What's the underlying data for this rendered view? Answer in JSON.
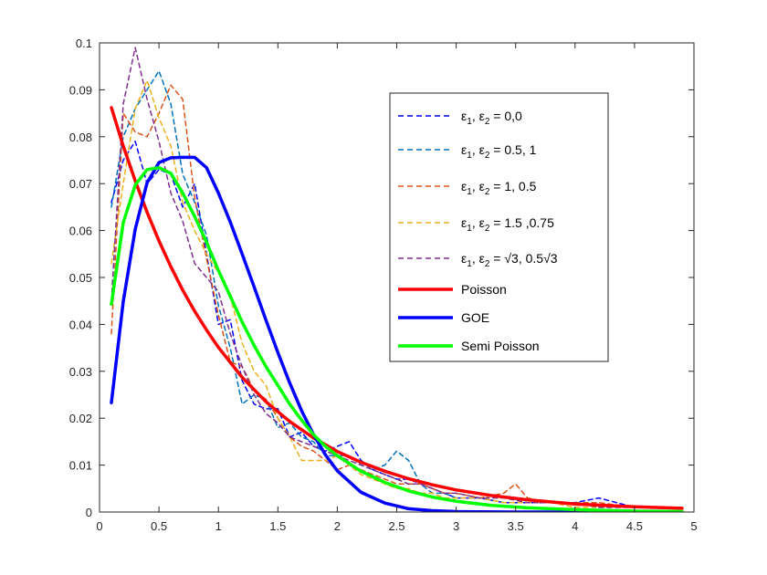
{
  "chart_data": {
    "type": "line",
    "title": "",
    "xlabel": "",
    "ylabel": "",
    "xlim": [
      0,
      5
    ],
    "ylim": [
      0,
      0.1
    ],
    "x_ticks": [
      0,
      0.5,
      1,
      1.5,
      2,
      2.5,
      3,
      3.5,
      4,
      4.5,
      5
    ],
    "y_ticks": [
      0,
      0.01,
      0.02,
      0.03,
      0.04,
      0.05,
      0.06,
      0.07,
      0.08,
      0.09,
      0.1
    ],
    "x_tick_labels": [
      "0",
      "0.5",
      "1",
      "1.5",
      "2",
      "2.5",
      "3",
      "3.5",
      "4",
      "4.5",
      "5"
    ],
    "y_tick_labels": [
      "0",
      "0.01",
      "0.02",
      "0.03",
      "0.04",
      "0.05",
      "0.06",
      "0.07",
      "0.08",
      "0.09",
      "0.1"
    ],
    "grid": false,
    "legend_position": "top-right",
    "series": [
      {
        "name": "ε1, ε2 = 0,0",
        "label_main": "ε",
        "label_rest": "= 0,0",
        "style": "dashed",
        "width": "thin",
        "color": "#0000ff",
        "x": [
          0.1,
          0.2,
          0.3,
          0.4,
          0.5,
          0.6,
          0.7,
          0.8,
          0.9,
          1.0,
          1.1,
          1.2,
          1.3,
          1.4,
          1.5,
          1.6,
          1.7,
          1.8,
          1.9,
          2.0,
          2.1,
          2.2,
          2.3,
          2.4,
          2.5,
          2.6,
          2.7,
          2.8,
          2.9,
          3.0,
          3.2,
          3.4,
          3.6,
          3.8,
          4.0,
          4.2,
          4.5,
          4.9
        ],
        "y": [
          0.066,
          0.075,
          0.079,
          0.07,
          0.073,
          0.072,
          0.065,
          0.07,
          0.055,
          0.04,
          0.041,
          0.028,
          0.023,
          0.022,
          0.022,
          0.016,
          0.017,
          0.014,
          0.013,
          0.014,
          0.015,
          0.011,
          0.009,
          0.008,
          0.007,
          0.007,
          0.006,
          0.005,
          0.004,
          0.003,
          0.003,
          0.002,
          0.002,
          0.002,
          0.002,
          0.003,
          0.001,
          0.001
        ]
      },
      {
        "name": "ε1, ε2 = 0.5, 1",
        "label_main": "ε",
        "label_rest": "= 0.5, 1",
        "style": "dashed",
        "width": "thin",
        "color": "#0072bd",
        "x": [
          0.1,
          0.2,
          0.3,
          0.4,
          0.5,
          0.6,
          0.7,
          0.8,
          0.9,
          1.0,
          1.1,
          1.2,
          1.3,
          1.4,
          1.5,
          1.6,
          1.7,
          1.8,
          1.9,
          2.0,
          2.1,
          2.2,
          2.3,
          2.4,
          2.5,
          2.6,
          2.7,
          2.8,
          2.9,
          3.0,
          3.2,
          3.4,
          3.6,
          3.8,
          4.0,
          4.2,
          4.5,
          4.9
        ],
        "y": [
          0.065,
          0.08,
          0.086,
          0.09,
          0.094,
          0.087,
          0.072,
          0.066,
          0.059,
          0.044,
          0.035,
          0.023,
          0.025,
          0.024,
          0.018,
          0.019,
          0.016,
          0.015,
          0.012,
          0.012,
          0.012,
          0.01,
          0.009,
          0.01,
          0.013,
          0.011,
          0.006,
          0.004,
          0.004,
          0.003,
          0.003,
          0.002,
          0.002,
          0.002,
          0.002,
          0.001,
          0.001,
          0.001
        ]
      },
      {
        "name": "ε1, ε2 = 1, 0.5",
        "label_main": "ε",
        "label_rest": "= 1, 0.5",
        "style": "dashed",
        "width": "thin",
        "color": "#d95319",
        "x": [
          0.1,
          0.2,
          0.3,
          0.4,
          0.5,
          0.6,
          0.7,
          0.8,
          0.9,
          1.0,
          1.1,
          1.2,
          1.3,
          1.4,
          1.5,
          1.6,
          1.7,
          1.8,
          1.9,
          2.0,
          2.1,
          2.2,
          2.3,
          2.4,
          2.5,
          2.6,
          2.7,
          2.8,
          2.9,
          3.0,
          3.2,
          3.4,
          3.5,
          3.6,
          3.8,
          4.0,
          4.2,
          4.5,
          4.9
        ],
        "y": [
          0.038,
          0.085,
          0.081,
          0.08,
          0.085,
          0.091,
          0.088,
          0.067,
          0.054,
          0.042,
          0.032,
          0.031,
          0.026,
          0.024,
          0.02,
          0.016,
          0.014,
          0.013,
          0.011,
          0.009,
          0.01,
          0.009,
          0.008,
          0.007,
          0.006,
          0.006,
          0.006,
          0.005,
          0.004,
          0.004,
          0.003,
          0.004,
          0.006,
          0.003,
          0.002,
          0.002,
          0.002,
          0.001,
          0.001
        ]
      },
      {
        "name": "ε1, ε2 = 1.5 ,0.75",
        "label_main": "ε",
        "label_rest": "= 1.5 ,0.75",
        "style": "dashed",
        "width": "thin",
        "color": "#edb120",
        "x": [
          0.1,
          0.2,
          0.3,
          0.4,
          0.5,
          0.6,
          0.7,
          0.8,
          0.9,
          1.0,
          1.1,
          1.2,
          1.3,
          1.4,
          1.5,
          1.6,
          1.7,
          1.8,
          1.9,
          2.0,
          2.1,
          2.2,
          2.3,
          2.4,
          2.5,
          2.6,
          2.7,
          2.8,
          2.9,
          3.0,
          3.2,
          3.4,
          3.6,
          3.8,
          4.0,
          4.2,
          4.5,
          4.9
        ],
        "y": [
          0.053,
          0.07,
          0.086,
          0.092,
          0.084,
          0.078,
          0.066,
          0.06,
          0.055,
          0.051,
          0.046,
          0.036,
          0.03,
          0.027,
          0.02,
          0.016,
          0.011,
          0.011,
          0.011,
          0.012,
          0.01,
          0.008,
          0.007,
          0.006,
          0.005,
          0.005,
          0.004,
          0.004,
          0.003,
          0.003,
          0.003,
          0.002,
          0.002,
          0.002,
          0.001,
          0.001,
          0.001,
          0.001
        ]
      },
      {
        "name": "ε1, ε2 = √3, 0.5√3",
        "label_main": "ε",
        "label_rest": "= √3, 0.5√3",
        "style": "dashed",
        "width": "thin",
        "color": "#7e2f8e",
        "x": [
          0.1,
          0.2,
          0.3,
          0.4,
          0.5,
          0.6,
          0.7,
          0.8,
          0.9,
          1.0,
          1.1,
          1.2,
          1.3,
          1.4,
          1.5,
          1.6,
          1.7,
          1.8,
          1.9,
          2.0,
          2.1,
          2.2,
          2.3,
          2.4,
          2.5,
          2.6,
          2.7,
          2.8,
          2.9,
          3.0,
          3.2,
          3.4,
          3.6,
          3.8,
          4.0,
          4.2,
          4.5,
          4.9
        ],
        "y": [
          0.045,
          0.087,
          0.099,
          0.088,
          0.079,
          0.068,
          0.062,
          0.053,
          0.05,
          0.047,
          0.038,
          0.031,
          0.025,
          0.021,
          0.019,
          0.016,
          0.015,
          0.014,
          0.013,
          0.012,
          0.011,
          0.01,
          0.009,
          0.008,
          0.007,
          0.006,
          0.006,
          0.005,
          0.004,
          0.004,
          0.003,
          0.003,
          0.002,
          0.002,
          0.002,
          0.001,
          0.001,
          0.001
        ]
      },
      {
        "name": "Poisson",
        "style": "solid",
        "width": "thick",
        "color": "#ff0000",
        "x": [
          0.1,
          0.2,
          0.3,
          0.4,
          0.5,
          0.6,
          0.7,
          0.8,
          0.9,
          1.0,
          1.2,
          1.4,
          1.6,
          1.8,
          2.0,
          2.2,
          2.4,
          2.6,
          2.8,
          3.0,
          3.3,
          3.6,
          4.0,
          4.5,
          4.9
        ],
        "y": [
          0.0862,
          0.078,
          0.0706,
          0.0639,
          0.0578,
          0.0523,
          0.0473,
          0.0428,
          0.0388,
          0.0351,
          0.0287,
          0.0235,
          0.0193,
          0.0158,
          0.0129,
          0.0106,
          0.0087,
          0.0071,
          0.0058,
          0.0047,
          0.0035,
          0.0026,
          0.0017,
          0.0011,
          0.0008
        ]
      },
      {
        "name": "GOE",
        "style": "solid",
        "width": "thick",
        "color": "#0000ff",
        "x": [
          0.1,
          0.2,
          0.3,
          0.4,
          0.5,
          0.6,
          0.7,
          0.8,
          0.9,
          1.0,
          1.1,
          1.2,
          1.3,
          1.4,
          1.5,
          1.6,
          1.7,
          1.8,
          1.9,
          2.0,
          2.2,
          2.4,
          2.6,
          2.8,
          3.0,
          3.5,
          4.0,
          4.5,
          4.9
        ],
        "y": [
          0.0233,
          0.0449,
          0.0603,
          0.0702,
          0.0745,
          0.0755,
          0.0756,
          0.0756,
          0.0734,
          0.068,
          0.0618,
          0.055,
          0.048,
          0.0409,
          0.034,
          0.0275,
          0.0216,
          0.0165,
          0.0122,
          0.0088,
          0.0042,
          0.0019,
          0.0007,
          0.0003,
          0.0001,
          0.0,
          0.0,
          0.0,
          0.0
        ]
      },
      {
        "name": "Semi Poisson",
        "style": "solid",
        "width": "thick",
        "color": "#00ff00",
        "x": [
          0.1,
          0.2,
          0.3,
          0.4,
          0.5,
          0.6,
          0.7,
          0.8,
          0.9,
          1.0,
          1.1,
          1.2,
          1.3,
          1.4,
          1.5,
          1.6,
          1.7,
          1.8,
          1.9,
          2.0,
          2.2,
          2.4,
          2.6,
          2.8,
          3.0,
          3.3,
          3.6,
          4.0,
          4.5,
          4.9
        ],
        "y": [
          0.0443,
          0.0617,
          0.0697,
          0.073,
          0.0734,
          0.0722,
          0.068,
          0.063,
          0.0575,
          0.0515,
          0.046,
          0.0405,
          0.0355,
          0.031,
          0.027,
          0.023,
          0.0196,
          0.0165,
          0.014,
          0.012,
          0.0087,
          0.0063,
          0.0045,
          0.0032,
          0.0023,
          0.0014,
          0.0009,
          0.0005,
          0.0002,
          0.0001
        ]
      }
    ]
  }
}
